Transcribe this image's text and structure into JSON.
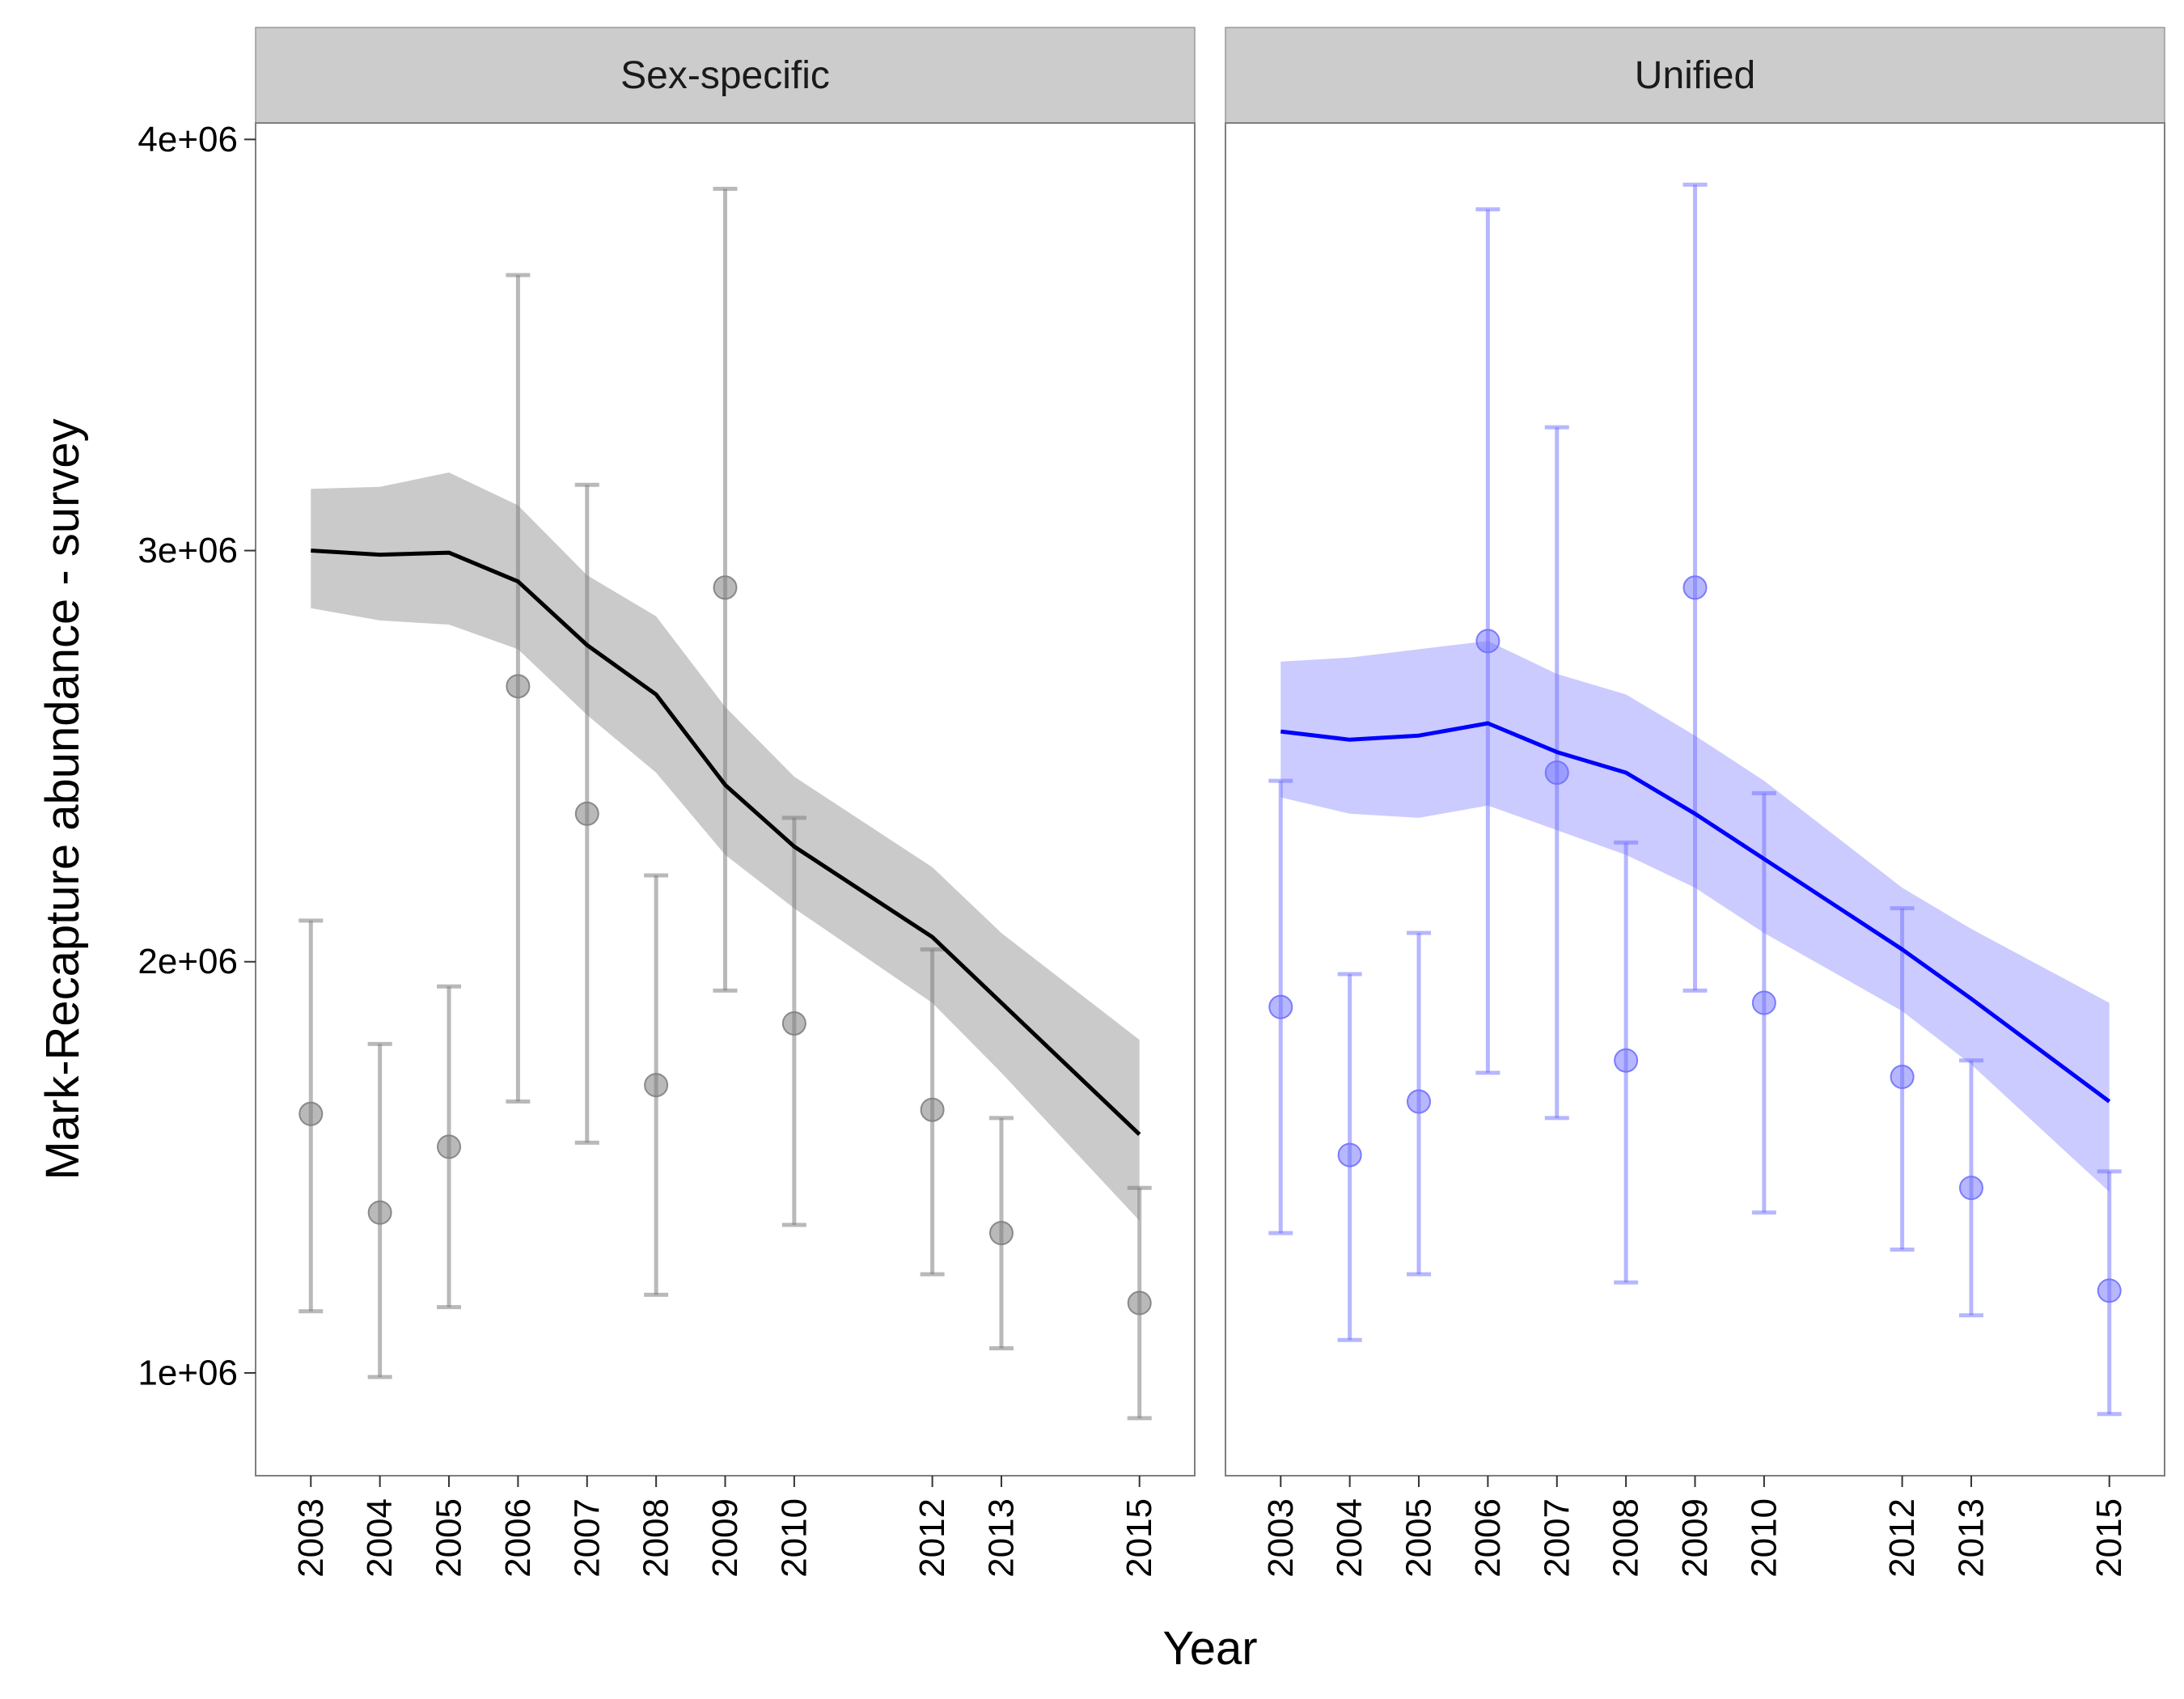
{
  "chart_data": {
    "type": "line",
    "xlabel": "Year",
    "ylabel": "Mark-Recapture abundance - survey",
    "x_ticks": [
      2003,
      2004,
      2005,
      2006,
      2007,
      2008,
      2009,
      2010,
      2012,
      2013,
      2015
    ],
    "y_ticks": [
      1000000,
      2000000,
      3000000,
      4000000
    ],
    "y_tick_labels": [
      "1e+06",
      "2e+06",
      "3e+06",
      "4e+06"
    ],
    "xlim": [
      2002.2,
      2015.8
    ],
    "ylim": [
      750000,
      4040000
    ],
    "grid": false,
    "panels": [
      {
        "strip": "Sex-specific",
        "color": "#000000",
        "ribbon_color": "#bdbdbd",
        "points_color": "#808080",
        "model_line": {
          "x": [
            2003,
            2004,
            2005,
            2006,
            2007,
            2008,
            2009,
            2010,
            2012,
            2013,
            2015
          ],
          "y": [
            3000000,
            2990000,
            2995000,
            2925000,
            2770000,
            2650000,
            2430000,
            2280000,
            2060000,
            1900000,
            1580000
          ]
        },
        "ribbon": {
          "x": [
            2003,
            2004,
            2005,
            2006,
            2007,
            2008,
            2009,
            2010,
            2012,
            2013,
            2015
          ],
          "lower": [
            2860000,
            2830000,
            2820000,
            2760000,
            2600000,
            2460000,
            2260000,
            2130000,
            1900000,
            1730000,
            1370000
          ],
          "upper": [
            3150000,
            3155000,
            3190000,
            3110000,
            2940000,
            2840000,
            2620000,
            2450000,
            2230000,
            2070000,
            1810000
          ]
        },
        "observations": [
          {
            "x": 2003,
            "y": 1630000,
            "lower": 1150000,
            "upper": 2100000
          },
          {
            "x": 2004,
            "y": 1390000,
            "lower": 990000,
            "upper": 1800000
          },
          {
            "x": 2005,
            "y": 1550000,
            "lower": 1160000,
            "upper": 1940000
          },
          {
            "x": 2006,
            "y": 2670000,
            "lower": 1660000,
            "upper": 3670000
          },
          {
            "x": 2007,
            "y": 2360000,
            "lower": 1560000,
            "upper": 3160000
          },
          {
            "x": 2008,
            "y": 1700000,
            "lower": 1190000,
            "upper": 2210000
          },
          {
            "x": 2009,
            "y": 2910000,
            "lower": 1930000,
            "upper": 3880000
          },
          {
            "x": 2010,
            "y": 1850000,
            "lower": 1360000,
            "upper": 2350000
          },
          {
            "x": 2012,
            "y": 1640000,
            "lower": 1240000,
            "upper": 2030000
          },
          {
            "x": 2013,
            "y": 1340000,
            "lower": 1060000,
            "upper": 1620000
          },
          {
            "x": 2015,
            "y": 1170000,
            "lower": 890000,
            "upper": 1450000
          }
        ]
      },
      {
        "strip": "Unified",
        "color": "#0000ff",
        "ribbon_color": "#c8c8ff",
        "points_color": "#7070ff",
        "model_line": {
          "x": [
            2003,
            2004,
            2005,
            2006,
            2007,
            2008,
            2009,
            2010,
            2012,
            2013,
            2015
          ],
          "y": [
            2560000,
            2540000,
            2550000,
            2580000,
            2510000,
            2460000,
            2360000,
            2250000,
            2030000,
            1910000,
            1660000
          ]
        },
        "ribbon": {
          "x": [
            2003,
            2004,
            2005,
            2006,
            2007,
            2008,
            2009,
            2010,
            2012,
            2013,
            2015
          ],
          "lower": [
            2400000,
            2360000,
            2350000,
            2380000,
            2320000,
            2260000,
            2180000,
            2070000,
            1880000,
            1750000,
            1440000
          ],
          "upper": [
            2730000,
            2740000,
            2760000,
            2780000,
            2700000,
            2650000,
            2550000,
            2440000,
            2180000,
            2080000,
            1900000
          ]
        },
        "observations": [
          {
            "x": 2003,
            "y": 1890000,
            "lower": 1340000,
            "upper": 2440000
          },
          {
            "x": 2004,
            "y": 1530000,
            "lower": 1080000,
            "upper": 1970000
          },
          {
            "x": 2005,
            "y": 1660000,
            "lower": 1240000,
            "upper": 2070000
          },
          {
            "x": 2006,
            "y": 2780000,
            "lower": 1730000,
            "upper": 3830000
          },
          {
            "x": 2007,
            "y": 2460000,
            "lower": 1620000,
            "upper": 3300000
          },
          {
            "x": 2008,
            "y": 1760000,
            "lower": 1220000,
            "upper": 2290000
          },
          {
            "x": 2009,
            "y": 2910000,
            "lower": 1930000,
            "upper": 3890000
          },
          {
            "x": 2010,
            "y": 1900000,
            "lower": 1390000,
            "upper": 2410000
          },
          {
            "x": 2012,
            "y": 1720000,
            "lower": 1300000,
            "upper": 2130000
          },
          {
            "x": 2013,
            "y": 1450000,
            "lower": 1140000,
            "upper": 1760000
          },
          {
            "x": 2015,
            "y": 1200000,
            "lower": 900000,
            "upper": 1490000
          }
        ]
      }
    ]
  }
}
